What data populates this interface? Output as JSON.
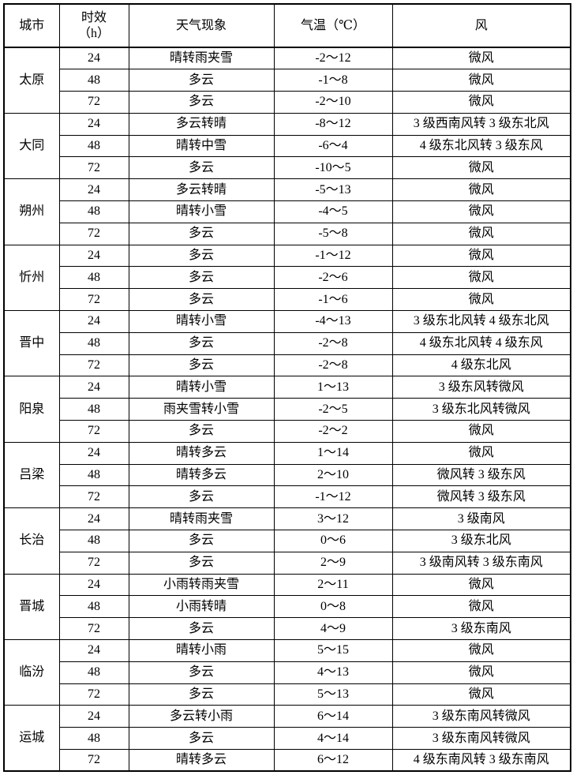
{
  "table": {
    "headers": {
      "city": "城市",
      "period_line1": "时效",
      "period_line2": "（h）",
      "weather": "天气现象",
      "temperature": "气温（℃）",
      "wind": "风"
    },
    "cities": [
      {
        "name": "太原",
        "rows": [
          {
            "hours": "24",
            "weather": "晴转雨夹雪",
            "temp": "-2～12",
            "wind": "微风"
          },
          {
            "hours": "48",
            "weather": "多云",
            "temp": "-1～8",
            "wind": "微风"
          },
          {
            "hours": "72",
            "weather": "多云",
            "temp": "-2～10",
            "wind": "微风"
          }
        ]
      },
      {
        "name": "大同",
        "rows": [
          {
            "hours": "24",
            "weather": "多云转晴",
            "temp": "-8～12",
            "wind": "3 级西南风转 3 级东北风"
          },
          {
            "hours": "48",
            "weather": "晴转中雪",
            "temp": "-6～4",
            "wind": "4 级东北风转 3 级东风"
          },
          {
            "hours": "72",
            "weather": "多云",
            "temp": "-10～5",
            "wind": "微风"
          }
        ]
      },
      {
        "name": "朔州",
        "rows": [
          {
            "hours": "24",
            "weather": "多云转晴",
            "temp": "-5～13",
            "wind": "微风"
          },
          {
            "hours": "48",
            "weather": "晴转小雪",
            "temp": "-4～5",
            "wind": "微风"
          },
          {
            "hours": "72",
            "weather": "多云",
            "temp": "-5～8",
            "wind": "微风"
          }
        ]
      },
      {
        "name": "忻州",
        "rows": [
          {
            "hours": "24",
            "weather": "多云",
            "temp": "-1～12",
            "wind": "微风"
          },
          {
            "hours": "48",
            "weather": "多云",
            "temp": "-2～6",
            "wind": "微风"
          },
          {
            "hours": "72",
            "weather": "多云",
            "temp": "-1～6",
            "wind": "微风"
          }
        ]
      },
      {
        "name": "晋中",
        "rows": [
          {
            "hours": "24",
            "weather": "晴转小雪",
            "temp": "-4～13",
            "wind": "3 级东北风转 4 级东北风"
          },
          {
            "hours": "48",
            "weather": "多云",
            "temp": "-2～8",
            "wind": "4 级东北风转 4 级东风"
          },
          {
            "hours": "72",
            "weather": "多云",
            "temp": "-2～8",
            "wind": "4 级东北风"
          }
        ]
      },
      {
        "name": "阳泉",
        "rows": [
          {
            "hours": "24",
            "weather": "晴转小雪",
            "temp": "1～13",
            "wind": "3 级东风转微风"
          },
          {
            "hours": "48",
            "weather": "雨夹雪转小雪",
            "temp": "-2～5",
            "wind": "3 级东北风转微风"
          },
          {
            "hours": "72",
            "weather": "多云",
            "temp": "-2～2",
            "wind": "微风"
          }
        ]
      },
      {
        "name": "吕梁",
        "rows": [
          {
            "hours": "24",
            "weather": "晴转多云",
            "temp": "1～14",
            "wind": "微风"
          },
          {
            "hours": "48",
            "weather": "晴转多云",
            "temp": "2～10",
            "wind": "微风转 3 级东风"
          },
          {
            "hours": "72",
            "weather": "多云",
            "temp": "-1～12",
            "wind": "微风转 3 级东风"
          }
        ]
      },
      {
        "name": "长治",
        "rows": [
          {
            "hours": "24",
            "weather": "晴转雨夹雪",
            "temp": "3～12",
            "wind": "3 级南风"
          },
          {
            "hours": "48",
            "weather": "多云",
            "temp": "0～6",
            "wind": "3 级东北风"
          },
          {
            "hours": "72",
            "weather": "多云",
            "temp": "2～9",
            "wind": "3 级南风转 3 级东南风"
          }
        ]
      },
      {
        "name": "晋城",
        "rows": [
          {
            "hours": "24",
            "weather": "小雨转雨夹雪",
            "temp": "2～11",
            "wind": "微风"
          },
          {
            "hours": "48",
            "weather": "小雨转晴",
            "temp": "0～8",
            "wind": "微风"
          },
          {
            "hours": "72",
            "weather": "多云",
            "temp": "4～9",
            "wind": "3 级东南风"
          }
        ]
      },
      {
        "name": "临汾",
        "rows": [
          {
            "hours": "24",
            "weather": "晴转小雨",
            "temp": "5～15",
            "wind": "微风"
          },
          {
            "hours": "48",
            "weather": "多云",
            "temp": "4～13",
            "wind": "微风"
          },
          {
            "hours": "72",
            "weather": "多云",
            "temp": "5～13",
            "wind": "微风"
          }
        ]
      },
      {
        "name": "运城",
        "rows": [
          {
            "hours": "24",
            "weather": "多云转小雨",
            "temp": "6～14",
            "wind": "3 级东南风转微风"
          },
          {
            "hours": "48",
            "weather": "多云",
            "temp": "4～14",
            "wind": "3 级东南风转微风"
          },
          {
            "hours": "72",
            "weather": "晴转多云",
            "temp": "6～12",
            "wind": "4 级东南风转 3 级东南风"
          }
        ]
      }
    ]
  }
}
